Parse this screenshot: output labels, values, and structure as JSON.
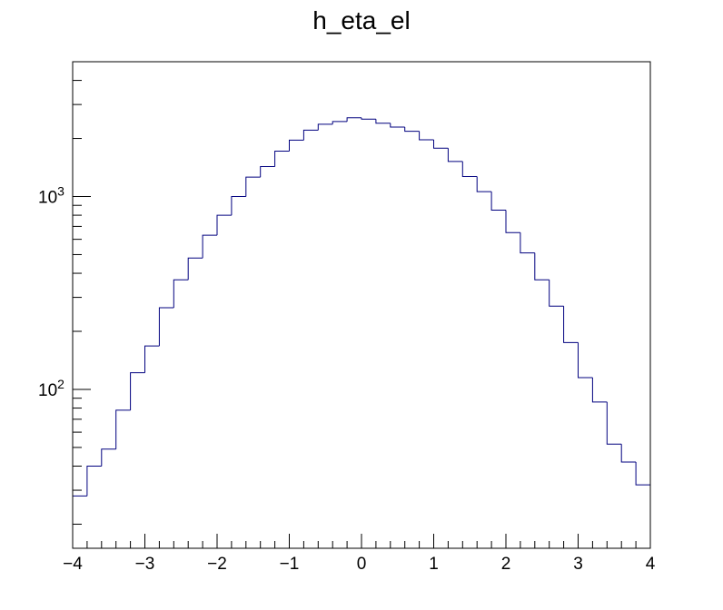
{
  "chart_data": {
    "type": "histogram",
    "title": "h_eta_el",
    "xlabel": "",
    "ylabel": "",
    "xlim": [
      -4,
      4
    ],
    "ylim": [
      15,
      5000
    ],
    "y_scale": "log",
    "grid": false,
    "legend": "none",
    "line_color": "#00007f",
    "x_ticks": [
      "−4",
      "−3",
      "−2",
      "−1",
      "0",
      "1",
      "2",
      "3",
      "4"
    ],
    "y_ticks": [
      {
        "value": 100,
        "base": "10",
        "exp": "2"
      },
      {
        "value": 1000,
        "base": "10",
        "exp": "3"
      }
    ],
    "bin_edges": [
      -4.0,
      -3.8,
      -3.6,
      -3.4,
      -3.2,
      -3.0,
      -2.8,
      -2.6,
      -2.4,
      -2.2,
      -2.0,
      -1.8,
      -1.6,
      -1.4,
      -1.2,
      -1.0,
      -0.8,
      -0.6,
      -0.4,
      -0.2,
      0.0,
      0.2,
      0.4,
      0.6,
      0.8,
      1.0,
      1.2,
      1.4,
      1.6,
      1.8,
      2.0,
      2.2,
      2.4,
      2.6,
      2.8,
      3.0,
      3.2,
      3.4,
      3.6,
      3.8,
      4.0
    ],
    "values": [
      28,
      40,
      49,
      78,
      122,
      168,
      265,
      370,
      480,
      630,
      800,
      1000,
      1260,
      1430,
      1720,
      1960,
      2210,
      2370,
      2450,
      2560,
      2520,
      2400,
      2290,
      2180,
      1970,
      1780,
      1520,
      1270,
      1060,
      850,
      650,
      510,
      370,
      270,
      175,
      115,
      86,
      52,
      42,
      32
    ]
  }
}
